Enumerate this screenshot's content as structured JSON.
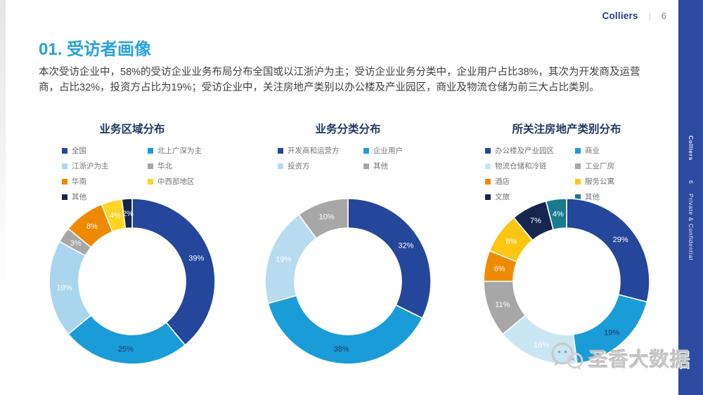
{
  "page": {
    "brand": "Colliers",
    "page_number": "6",
    "header_separator": "|",
    "title": "01. 受访者画像",
    "body_text": "本次受访企业中，58%的受访企业业务布局分布全国或以江浙沪为主；受访企业业务分类中，企业用户占比38%，其次为开发商及运营商，占比32%，投资方占比为19%；受访企业中，关注房地产类别以办公楼及产业园区，商业及物流仓储为前三大占比类别。"
  },
  "sidebar": {
    "brand": "Colliers",
    "page_number": "6",
    "confidential": "Private & Confidential",
    "background": "#2c4a9f"
  },
  "watermark": {
    "text": "圣香大数据",
    "icon": "wechat-bubbles-icon"
  },
  "colors": {
    "title_blue": "#27a2dc",
    "heading_navy": "#1f3864",
    "sidebar_blue": "#2c4a9f",
    "brand_blue": "#1e3c96"
  },
  "chart_data": [
    {
      "type": "pie",
      "donut": true,
      "title": "业务区域分布",
      "legend_position": "top",
      "label_suffix": "%",
      "segments": [
        {
          "label": "全国",
          "value": 39,
          "color": "#24469b",
          "label_color": "#ffffff"
        },
        {
          "label": "北上广深为主",
          "value": 25,
          "color": "#1a9cd8",
          "label_color": "#1f3864"
        },
        {
          "label": "江浙沪为主",
          "value": 19,
          "color": "#a9d6ee",
          "label_color": "#ffffff"
        },
        {
          "label": "华北",
          "value": 3,
          "color": "#a7a7a7",
          "label_color": "#ffffff"
        },
        {
          "label": "华南",
          "value": 8,
          "color": "#ee8a00",
          "label_color": "#ffffff"
        },
        {
          "label": "中西部地区",
          "value": 4,
          "color": "#ffd422",
          "label_color": "#ffffff"
        },
        {
          "label": "其他",
          "value": 2,
          "color": "#16254e",
          "label_color": "#ffffff"
        }
      ]
    },
    {
      "type": "pie",
      "donut": true,
      "title": "业务分类分布",
      "legend_position": "top",
      "label_suffix": "%",
      "segments": [
        {
          "label": "开发商和运营方",
          "value": 32,
          "color": "#24469b",
          "label_color": "#ffffff"
        },
        {
          "label": "企业用户",
          "value": 38,
          "color": "#1a9cd8",
          "label_color": "#1f3864"
        },
        {
          "label": "投资方",
          "value": 19,
          "color": "#b7dcf1",
          "label_color": "#ffffff"
        },
        {
          "label": "其他",
          "value": 10,
          "color": "#a7a7a7",
          "label_color": "#ffffff"
        }
      ]
    },
    {
      "type": "pie",
      "donut": true,
      "title": "所关注房地产类别分布",
      "legend_position": "top",
      "label_suffix": "%",
      "segments": [
        {
          "label": "办公楼及产业园区",
          "value": 29,
          "color": "#24469b",
          "label_color": "#ffffff"
        },
        {
          "label": "商业",
          "value": 19,
          "color": "#1a9cd8",
          "label_color": "#1f3864"
        },
        {
          "label": "物流仓储和冷链",
          "value": 16,
          "color": "#c9e6f4",
          "label_color": "#ffffff"
        },
        {
          "label": "工业厂房",
          "value": 11,
          "color": "#a7a7a7",
          "label_color": "#ffffff"
        },
        {
          "label": "酒店",
          "value": 6,
          "color": "#ee8a00",
          "label_color": "#ffffff"
        },
        {
          "label": "服务公寓",
          "value": 8,
          "color": "#fcc713",
          "label_color": "#ffffff"
        },
        {
          "label": "文旅",
          "value": 7,
          "color": "#17264f",
          "label_color": "#ffffff"
        },
        {
          "label": "其他",
          "value": 4,
          "color": "#197b90",
          "label_color": "#ffffff"
        }
      ]
    }
  ]
}
